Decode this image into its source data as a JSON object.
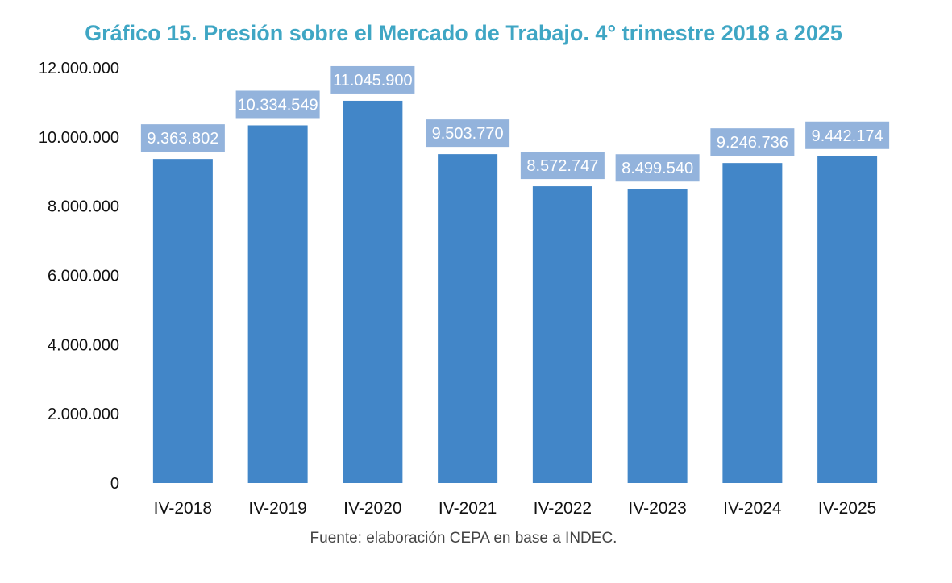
{
  "chart_data": {
    "type": "bar",
    "title": "Gráfico 15. Presión sobre el Mercado de Trabajo. 4° trimestre 2018 a 2025",
    "categories": [
      "IV-2018",
      "IV-2019",
      "IV-2020",
      "IV-2021",
      "IV-2022",
      "IV-2023",
      "IV-2024",
      "IV-2025"
    ],
    "values": [
      9363802,
      10334549,
      11045900,
      9503770,
      8572747,
      8499540,
      9246736,
      9442174
    ],
    "data_labels": [
      "9.363.802",
      "10.334.549",
      "11.045.900",
      "9.503.770",
      "8.572.747",
      "8.499.540",
      "9.246.736",
      "9.442.174"
    ],
    "yticks": [
      0,
      2000000,
      4000000,
      6000000,
      8000000,
      10000000,
      12000000
    ],
    "ytick_labels": [
      "0",
      "2.000.000",
      "4.000.000",
      "6.000.000",
      "8.000.000",
      "10.000.000",
      "12.000.000"
    ],
    "ylim": [
      0,
      12000000
    ],
    "xlabel": "",
    "ylabel": "",
    "grid": false,
    "legend": "none",
    "bar_color": "#4286c8",
    "label_box_color": "#93b3dc",
    "label_text_color": "#ffffff",
    "title_color": "#3fa6c4"
  },
  "footer": {
    "source": "Fuente: elaboración CEPA en base a INDEC."
  }
}
